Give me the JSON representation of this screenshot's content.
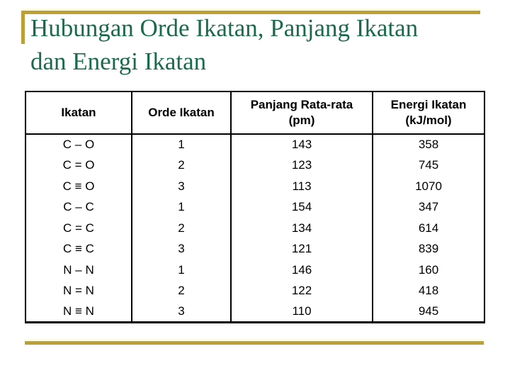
{
  "slide": {
    "title": "Hubungan Orde Ikatan, Panjang Ikatan\ndan Energi Ikatan"
  },
  "colors": {
    "gold": "#BDA035",
    "pale": "#FFFFE0",
    "green": "#1A6A4D",
    "ink": "#000000"
  },
  "table": {
    "headers": [
      "Ikatan",
      "Orde Ikatan",
      "Panjang Rata-rata\n(pm)",
      "Energi Ikatan\n(kJ/mol)"
    ],
    "rows": [
      [
        "C – O",
        "1",
        "143",
        "358"
      ],
      [
        "C = O",
        "2",
        "123",
        "745"
      ],
      [
        "C ≡ O",
        "3",
        "113",
        "1070"
      ],
      [
        "C – C",
        "1",
        "154",
        "347"
      ],
      [
        "C = C",
        "2",
        "134",
        "614"
      ],
      [
        "C ≡ C",
        "3",
        "121",
        "839"
      ],
      [
        "N – N",
        "1",
        "146",
        "160"
      ],
      [
        "N = N",
        "2",
        "122",
        "418"
      ],
      [
        "N ≡ N",
        "3",
        "110",
        "945"
      ]
    ]
  }
}
